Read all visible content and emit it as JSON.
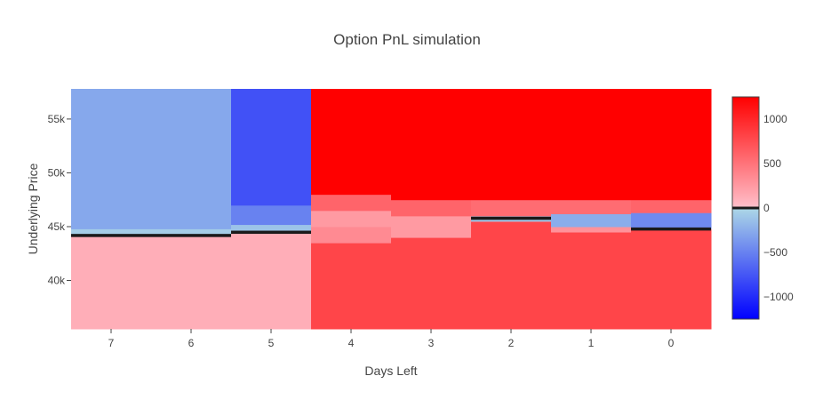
{
  "chart_data": {
    "type": "heatmap",
    "title": "Option PnL simulation",
    "xlabel": "Days Left",
    "ylabel": "Underlying Price",
    "x": [
      7,
      6,
      5,
      4,
      3,
      2,
      1,
      0
    ],
    "x_tick_labels": [
      "7",
      "6",
      "5",
      "4",
      "3",
      "2",
      "1",
      "0"
    ],
    "y_tick_values": [
      40000,
      45000,
      50000,
      55000
    ],
    "y_tick_labels": [
      "40k",
      "45k",
      "50k",
      "55k"
    ],
    "ylim": [
      35500,
      57800
    ],
    "colorscale": {
      "stops": [
        {
          "value": -1250,
          "color": "#0000ff"
        },
        {
          "value": 0,
          "color": "#add8e6"
        },
        {
          "value": 0,
          "color": "#ffc0cb"
        },
        {
          "value": 1250,
          "color": "#ff0000"
        }
      ],
      "zmin": -1250,
      "zmax": 1250,
      "tick_values": [
        1000,
        500,
        0,
        -500,
        -1000
      ],
      "tick_labels": [
        "1000",
        "500",
        "0",
        "−500",
        "−1000"
      ]
    },
    "columns": [
      {
        "day": 7,
        "breakeven": 44200,
        "segments": [
          {
            "from": 35500,
            "to": 44200,
            "pnl": 120
          },
          {
            "from": 44200,
            "to": 44800,
            "pnl": -60
          },
          {
            "from": 44800,
            "to": 57800,
            "pnl": -280
          }
        ]
      },
      {
        "day": 6,
        "breakeven": 44200,
        "segments": [
          {
            "from": 35500,
            "to": 44200,
            "pnl": 120
          },
          {
            "from": 44200,
            "to": 44800,
            "pnl": -60
          },
          {
            "from": 44800,
            "to": 57800,
            "pnl": -280
          }
        ]
      },
      {
        "day": 5,
        "breakeven": 44500,
        "segments": [
          {
            "from": 35500,
            "to": 44500,
            "pnl": 120
          },
          {
            "from": 44500,
            "to": 45200,
            "pnl": -120
          },
          {
            "from": 45200,
            "to": 47000,
            "pnl": -500
          },
          {
            "from": 47000,
            "to": 57800,
            "pnl": -780
          }
        ]
      },
      {
        "day": 4,
        "breakeven": null,
        "segments": [
          {
            "from": 35500,
            "to": 43500,
            "pnl": 800
          },
          {
            "from": 43500,
            "to": 45000,
            "pnl": 350
          },
          {
            "from": 45000,
            "to": 46500,
            "pnl": 250
          },
          {
            "from": 46500,
            "to": 48000,
            "pnl": 600
          },
          {
            "from": 48000,
            "to": 57800,
            "pnl": 1250
          }
        ]
      },
      {
        "day": 3,
        "breakeven": null,
        "segments": [
          {
            "from": 35500,
            "to": 44000,
            "pnl": 800
          },
          {
            "from": 44000,
            "to": 46000,
            "pnl": 250
          },
          {
            "from": 46000,
            "to": 47500,
            "pnl": 600
          },
          {
            "from": 47500,
            "to": 57800,
            "pnl": 1250
          }
        ]
      },
      {
        "day": 2,
        "breakeven": 45800,
        "segments": [
          {
            "from": 35500,
            "to": 45500,
            "pnl": 800
          },
          {
            "from": 45500,
            "to": 46000,
            "pnl": -100
          },
          {
            "from": 46000,
            "to": 47500,
            "pnl": 550
          },
          {
            "from": 47500,
            "to": 57800,
            "pnl": 1250
          }
        ]
      },
      {
        "day": 1,
        "breakeven": null,
        "segments": [
          {
            "from": 35500,
            "to": 44500,
            "pnl": 800
          },
          {
            "from": 44500,
            "to": 45000,
            "pnl": 300
          },
          {
            "from": 45000,
            "to": 46200,
            "pnl": -250
          },
          {
            "from": 46200,
            "to": 47500,
            "pnl": 550
          },
          {
            "from": 47500,
            "to": 57800,
            "pnl": 1250
          }
        ]
      },
      {
        "day": 0,
        "breakeven": 44800,
        "segments": [
          {
            "from": 35500,
            "to": 44800,
            "pnl": 800
          },
          {
            "from": 44800,
            "to": 46300,
            "pnl": -450
          },
          {
            "from": 46300,
            "to": 47500,
            "pnl": 600
          },
          {
            "from": 47500,
            "to": 57800,
            "pnl": 1250
          }
        ]
      }
    ]
  }
}
